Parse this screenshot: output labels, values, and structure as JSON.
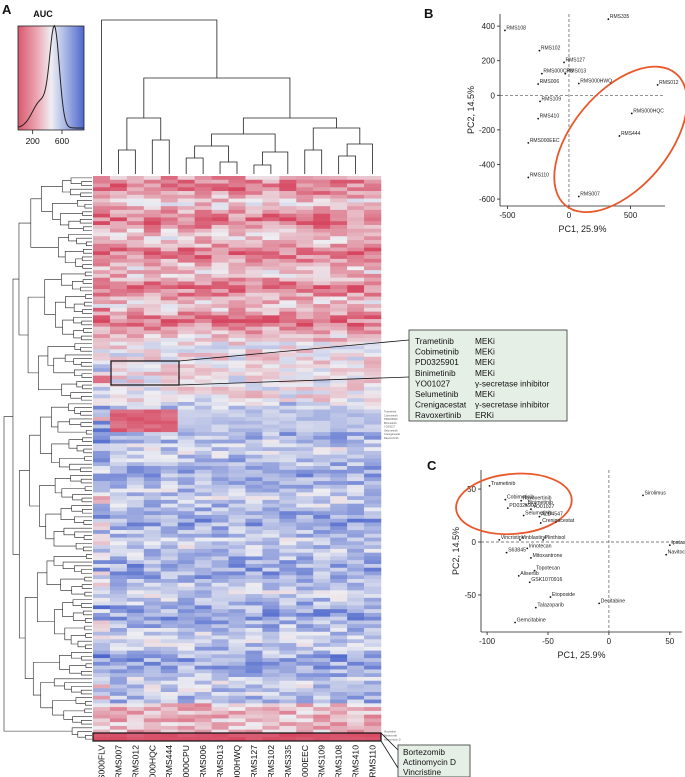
{
  "figure": {
    "panels": [
      "A",
      "B",
      "C"
    ],
    "auc_legend": {
      "title": "AUC",
      "ticks": [
        "200",
        "600"
      ],
      "tick_values": [
        200,
        600
      ],
      "range": [
        0,
        900
      ]
    },
    "samples": [
      "RMS000FLV",
      "RMS007",
      "RMS012",
      "RMS000HQC",
      "RMS444",
      "RMS000CPU",
      "RMS006",
      "RMS013",
      "RMS000HWQ",
      "RMS127",
      "RMS102",
      "RMS335",
      "RMS000EEC",
      "RMS109",
      "RMS108",
      "RMS410",
      "RMS110"
    ],
    "cluster_box_1": {
      "drugs": [
        {
          "name": "Trametinib",
          "target": "MEKi"
        },
        {
          "name": "Cobimetinib",
          "target": "MEKi"
        },
        {
          "name": "PD0325901",
          "target": "MEKi"
        },
        {
          "name": "Binimetinib",
          "target": "MEKi"
        },
        {
          "name": "YO01027",
          "target": "γ-secretase inhibitor"
        },
        {
          "name": "Selumetinib",
          "target": "MEKi"
        },
        {
          "name": "Crenigacestat",
          "target": "γ-secretase inhibitor"
        },
        {
          "name": "Ravoxertinib",
          "target": "ERKi"
        }
      ]
    },
    "cluster_box_2": {
      "drugs": [
        "Bortezomib",
        "Actinomycin D",
        "Vincristine"
      ]
    },
    "row_labels": [
      "Trametinib",
      "Cobimetinib",
      "PD0325901",
      "Binimetinib",
      "YO01027",
      "Selumetinib",
      "Crenigacestat",
      "Ravoxertinib",
      "Bortezomib",
      "Actinomycin D",
      "Vincristine"
    ]
  },
  "chart_data": [
    {
      "type": "scatter",
      "panel": "B",
      "xlabel": "PC1, 25.9%",
      "ylabel": "PC2, 14.5%",
      "xticks": [
        -500,
        0,
        500
      ],
      "yticks": [
        400,
        200,
        0,
        -200,
        -400,
        -600
      ],
      "xlim": [
        -560,
        780
      ],
      "ylim": [
        -640,
        470
      ],
      "points": [
        {
          "label": "RMS108",
          "x": -520,
          "y": 375
        },
        {
          "label": "RMS335",
          "x": 320,
          "y": 440
        },
        {
          "label": "RMS102",
          "x": -240,
          "y": 258
        },
        {
          "label": "RMS127",
          "x": -40,
          "y": 190
        },
        {
          "label": "RMS013",
          "x": -30,
          "y": 125
        },
        {
          "label": "RMS000CPU",
          "x": -220,
          "y": 125
        },
        {
          "label": "RMS000HWQ",
          "x": 80,
          "y": 68
        },
        {
          "label": "RMS006",
          "x": -250,
          "y": 65
        },
        {
          "label": "RMS012",
          "x": 720,
          "y": 60
        },
        {
          "label": "RMS109",
          "x": -235,
          "y": -35
        },
        {
          "label": "RMS000HQC",
          "x": 510,
          "y": -105
        },
        {
          "label": "RMS410",
          "x": -250,
          "y": -135
        },
        {
          "label": "RMS444",
          "x": 410,
          "y": -235
        },
        {
          "label": "RMS000EEC",
          "x": -330,
          "y": -275
        },
        {
          "label": "RMS110",
          "x": -330,
          "y": -475
        },
        {
          "label": "RMS007",
          "x": 80,
          "y": -585
        }
      ]
    },
    {
      "type": "scatter",
      "panel": "C",
      "xlabel": "PC1, 25.9%",
      "ylabel": "PC2, 14.5%",
      "xticks": [
        -100,
        -50,
        0,
        50
      ],
      "yticks": [
        50,
        0,
        -50
      ],
      "xlim": [
        -105,
        60
      ],
      "ylim": [
        -85,
        68
      ],
      "points": [
        {
          "label": "Trametinib",
          "x": -98,
          "y": 53
        },
        {
          "label": "Sirolimus",
          "x": 28,
          "y": 44
        },
        {
          "label": "Cobimetinib",
          "x": -85,
          "y": 40
        },
        {
          "label": "Ravoxertinib",
          "x": -72,
          "y": 39
        },
        {
          "label": "Binimetinib",
          "x": -68,
          "y": 35
        },
        {
          "label": "PD0325901",
          "x": -83,
          "y": 32
        },
        {
          "label": "YO01027",
          "x": -64,
          "y": 31
        },
        {
          "label": "Selumetinib",
          "x": -70,
          "y": 25
        },
        {
          "label": "AZD4547",
          "x": -57,
          "y": 24
        },
        {
          "label": "Crenigacestat",
          "x": -56,
          "y": 18
        },
        {
          "label": "Vincristine",
          "x": -90,
          "y": 2
        },
        {
          "label": "Vinblastine",
          "x": -73,
          "y": 2
        },
        {
          "label": "Plinthisol",
          "x": -54,
          "y": 2
        },
        {
          "label": "Ipatasertib",
          "x": 50,
          "y": -3
        },
        {
          "label": "Irinotecan",
          "x": -67,
          "y": -6
        },
        {
          "label": "S63845",
          "x": -84,
          "y": -10
        },
        {
          "label": "Navitoclax",
          "x": 47,
          "y": -12
        },
        {
          "label": "Mitoxantrone",
          "x": -64,
          "y": -15
        },
        {
          "label": "Topotecan",
          "x": -61,
          "y": -27
        },
        {
          "label": "Alisertib",
          "x": -74,
          "y": -32
        },
        {
          "label": "GSK1070916",
          "x": -65,
          "y": -38
        },
        {
          "label": "Etoposide",
          "x": -48,
          "y": -52
        },
        {
          "label": "Decitabine",
          "x": -8,
          "y": -58
        },
        {
          "label": "Talazoparib",
          "x": -60,
          "y": -62
        },
        {
          "label": "Gemcitabine",
          "x": -77,
          "y": -76
        }
      ]
    }
  ]
}
